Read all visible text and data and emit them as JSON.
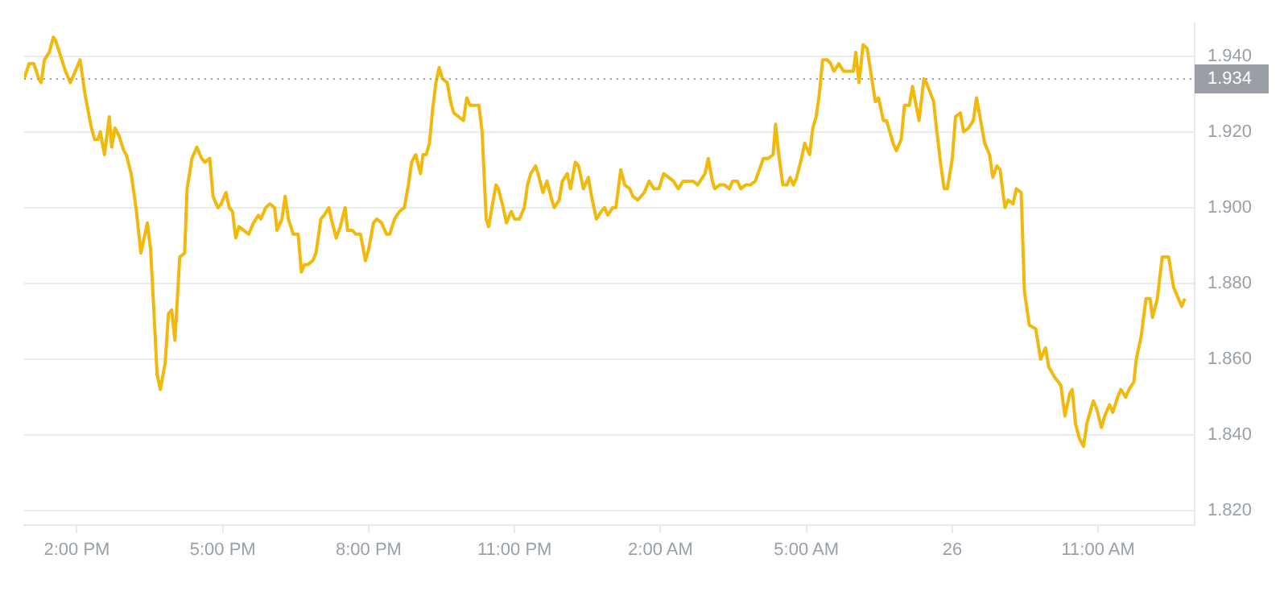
{
  "chart_data": {
    "type": "line",
    "x": [
      "--06-25T12:55",
      "--06-25T13:01",
      "--06-25T13:07",
      "--06-25T13:13",
      "--06-25T13:16",
      "--06-25T13:20",
      "--06-25T13:26",
      "--06-25T13:31",
      "--06-25T13:34",
      "--06-25T13:40",
      "--06-25T13:46",
      "--06-25T13:52",
      "--06-25T13:56",
      "--06-25T14:04",
      "--06-25T14:10",
      "--06-25T14:18",
      "--06-25T14:22",
      "--06-25T14:26",
      "--06-25T14:29",
      "--06-25T14:34",
      "--06-25T14:40",
      "--06-25T14:43",
      "--06-25T14:47",
      "--06-25T14:52",
      "--06-25T14:58",
      "--06-25T15:01",
      "--06-25T15:07",
      "--06-25T15:13",
      "--06-25T15:19",
      "--06-25T15:27",
      "--06-25T15:31",
      "--06-25T15:35",
      "--06-25T15:39",
      "--06-25T15:43",
      "--06-25T15:49",
      "--06-25T15:53",
      "--06-25T15:57",
      "--06-25T16:01",
      "--06-25T16:07",
      "--06-25T16:13",
      "--06-25T16:16",
      "--06-25T16:22",
      "--06-25T16:28",
      "--06-25T16:34",
      "--06-25T16:38",
      "--06-25T16:44",
      "--06-25T16:48",
      "--06-25T16:54",
      "--06-25T16:58",
      "--06-25T17:04",
      "--06-25T17:08",
      "--06-25T17:12",
      "--06-25T17:16",
      "--06-25T17:20",
      "--06-25T17:26",
      "--06-25T17:32",
      "--06-25T17:38",
      "--06-25T17:44",
      "--06-25T17:47",
      "--06-25T17:53",
      "--06-25T17:58",
      "--06-25T18:04",
      "--06-25T18:07",
      "--06-25T18:13",
      "--06-25T18:17",
      "--06-25T18:21",
      "--06-25T18:27",
      "--06-25T18:33",
      "--06-25T18:37",
      "--06-25T18:41",
      "--06-25T18:45",
      "--06-25T18:51",
      "--06-25T18:55",
      "--06-25T19:01",
      "--06-25T19:05",
      "--06-25T19:11",
      "--06-25T19:14",
      "--06-25T19:20",
      "--06-25T19:25",
      "--06-25T19:31",
      "--06-25T19:34",
      "--06-25T19:40",
      "--06-25T19:44",
      "--06-25T19:50",
      "--06-25T19:56",
      "--06-25T20:00",
      "--06-25T20:06",
      "--06-25T20:10",
      "--06-25T20:16",
      "--06-25T20:22",
      "--06-25T20:26",
      "--06-25T20:32",
      "--06-25T20:38",
      "--06-25T20:44",
      "--06-25T20:49",
      "--06-25T20:53",
      "--06-25T20:58",
      "--06-25T21:04",
      "--06-25T21:07",
      "--06-25T21:11",
      "--06-25T21:15",
      "--06-25T21:19",
      "--06-25T21:23",
      "--06-25T21:27",
      "--06-25T21:31",
      "--06-25T21:37",
      "--06-25T21:41",
      "--06-25T21:45",
      "--06-25T21:51",
      "--06-25T21:57",
      "--06-25T22:01",
      "--06-25T22:05",
      "--06-25T22:11",
      "--06-25T22:16",
      "--06-25T22:20",
      "--06-25T22:25",
      "--06-25T22:28",
      "--06-25T22:37",
      "--06-25T22:40",
      "--06-25T22:46",
      "--06-25T22:50",
      "--06-25T22:56",
      "--06-25T23:00",
      "--06-25T23:06",
      "--06-25T23:12",
      "--06-25T23:16",
      "--06-25T23:20",
      "--06-25T23:26",
      "--06-25T23:29",
      "--06-25T23:35",
      "--06-25T23:40",
      "--06-25T23:46",
      "--06-25T23:49",
      "--06-25T23:55",
      "--06-25T23:59",
      "--06-26T00:05",
      "--06-26T00:09",
      "--06-26T00:15",
      "--06-26T00:19",
      "--06-26T00:25",
      "--06-26T00:31",
      "--06-26T00:35",
      "--06-26T00:41",
      "--06-26T00:47",
      "--06-26T00:51",
      "--06-26T00:55",
      "--06-26T01:01",
      "--06-26T01:05",
      "--06-26T01:11",
      "--06-26T01:16",
      "--06-26T01:22",
      "--06-26T01:26",
      "--06-26T01:32",
      "--06-26T01:40",
      "--06-26T01:46",
      "--06-26T01:52",
      "--06-26T01:58",
      "--06-26T02:04",
      "--06-26T02:10",
      "--06-26T02:16",
      "--06-26T02:22",
      "--06-26T02:28",
      "--06-26T02:34",
      "--06-26T02:40",
      "--06-26T02:46",
      "--06-26T02:52",
      "--06-26T02:55",
      "--06-26T02:59",
      "--06-26T03:04",
      "--06-26T03:07",
      "--06-26T03:13",
      "--06-26T03:19",
      "--06-26T03:25",
      "--06-26T03:29",
      "--06-26T03:35",
      "--06-26T03:39",
      "--06-26T03:45",
      "--06-26T03:51",
      "--06-26T03:57",
      "--06-26T04:02",
      "--06-26T04:07",
      "--06-26T04:13",
      "--06-26T04:19",
      "--06-26T04:22",
      "--06-26T04:26",
      "--06-26T04:31",
      "--06-26T04:36",
      "--06-26T04:40",
      "--06-26T04:44",
      "--06-26T04:48",
      "--06-26T04:54",
      "--06-26T04:58",
      "--06-26T05:04",
      "--06-26T05:08",
      "--06-26T05:12",
      "--06-26T05:16",
      "--06-26T05:20",
      "--06-26T05:26",
      "--06-26T05:30",
      "--06-26T05:34",
      "--06-26T05:40",
      "--06-26T05:46",
      "--06-26T05:58",
      "--06-26T06:01",
      "--06-26T06:05",
      "--06-26T06:10",
      "--06-26T06:15",
      "--06-26T06:25",
      "--06-26T06:29",
      "--06-26T06:35",
      "--06-26T06:39",
      "--06-26T06:47",
      "--06-26T06:51",
      "--06-26T06:57",
      "--06-26T07:01",
      "--06-26T07:07",
      "--06-26T07:11",
      "--06-26T07:19",
      "--06-26T07:25",
      "--06-26T07:28",
      "--06-26T07:37",
      "--06-26T07:40",
      "--06-26T07:46",
      "--06-26T07:50",
      "--06-26T07:54",
      "--06-26T08:00",
      "--06-26T08:04",
      "--06-26T08:10",
      "--06-26T08:14",
      "--06-26T08:20",
      "--06-26T08:26",
      "--06-26T08:30",
      "--06-26T08:35",
      "--06-26T08:40",
      "--06-26T08:46",
      "--06-26T08:50",
      "--06-26T08:55",
      "--06-26T08:59",
      "--06-26T09:05",
      "--06-26T09:09",
      "--06-26T09:15",
      "--06-26T09:19",
      "--06-26T09:25",
      "--06-26T09:29",
      "--06-26T09:35",
      "--06-26T09:43",
      "--06-26T09:49",
      "--06-26T09:55",
      "--06-26T09:59",
      "--06-26T10:07",
      "--06-26T10:11",
      "--06-26T10:14",
      "--06-26T10:19",
      "--06-26T10:25",
      "--06-26T10:28",
      "--06-26T10:32",
      "--06-26T10:37",
      "--06-26T10:42",
      "--06-26T10:46",
      "--06-26T10:54",
      "--06-26T10:58",
      "--06-26T11:04",
      "--06-26T11:08",
      "--06-26T11:14",
      "--06-26T11:18",
      "--06-26T11:24",
      "--06-26T11:28",
      "--06-26T11:34",
      "--06-26T11:38",
      "--06-26T11:44",
      "--06-26T11:47",
      "--06-26T11:53",
      "--06-26T11:59",
      "--06-26T12:04",
      "--06-26T12:07",
      "--06-26T12:13",
      "--06-26T12:19",
      "--06-26T12:23",
      "--06-26T12:27",
      "--06-26T12:33",
      "--06-26T12:39",
      "--06-26T12:43",
      "--06-26T12:47"
    ],
    "values": [
      1.934,
      1.938,
      1.938,
      1.934,
      1.933,
      1.939,
      1.941,
      1.945,
      1.944,
      1.94,
      1.936,
      1.933,
      1.935,
      1.939,
      1.93,
      1.921,
      1.918,
      1.918,
      1.92,
      1.914,
      1.924,
      1.916,
      1.921,
      1.919,
      1.915,
      1.914,
      1.909,
      1.9,
      1.888,
      1.896,
      1.889,
      1.873,
      1.856,
      1.852,
      1.859,
      1.872,
      1.873,
      1.865,
      1.887,
      1.888,
      1.905,
      1.913,
      1.916,
      1.913,
      1.912,
      1.913,
      1.903,
      1.9,
      1.901,
      1.904,
      1.9,
      1.899,
      1.892,
      1.895,
      1.894,
      1.893,
      1.896,
      1.898,
      1.897,
      1.9,
      1.901,
      1.9,
      1.894,
      1.897,
      1.903,
      1.897,
      1.893,
      1.893,
      1.883,
      1.885,
      1.885,
      1.886,
      1.888,
      1.897,
      1.898,
      1.9,
      1.897,
      1.892,
      1.895,
      1.9,
      1.894,
      1.894,
      1.893,
      1.893,
      1.886,
      1.889,
      1.896,
      1.897,
      1.896,
      1.893,
      1.893,
      1.897,
      1.899,
      1.9,
      1.906,
      1.912,
      1.914,
      1.909,
      1.914,
      1.914,
      1.917,
      1.926,
      1.933,
      1.937,
      1.934,
      1.933,
      1.928,
      1.925,
      1.924,
      1.923,
      1.929,
      1.927,
      1.927,
      1.927,
      1.92,
      1.897,
      1.895,
      1.906,
      1.905,
      1.9,
      1.896,
      1.899,
      1.897,
      1.897,
      1.9,
      1.906,
      1.909,
      1.911,
      1.909,
      1.904,
      1.907,
      1.902,
      1.9,
      1.902,
      1.907,
      1.909,
      1.905,
      1.912,
      1.911,
      1.905,
      1.908,
      1.903,
      1.897,
      1.899,
      1.9,
      1.898,
      1.9,
      1.9,
      1.91,
      1.906,
      1.905,
      1.903,
      1.902,
      1.904,
      1.907,
      1.905,
      1.905,
      1.909,
      1.908,
      1.907,
      1.905,
      1.907,
      1.907,
      1.907,
      1.906,
      1.908,
      1.909,
      1.913,
      1.907,
      1.905,
      1.906,
      1.906,
      1.905,
      1.907,
      1.907,
      1.905,
      1.906,
      1.906,
      1.907,
      1.91,
      1.913,
      1.913,
      1.914,
      1.922,
      1.914,
      1.906,
      1.906,
      1.908,
      1.906,
      1.908,
      1.913,
      1.917,
      1.914,
      1.921,
      1.924,
      1.93,
      1.939,
      1.939,
      1.938,
      1.936,
      1.938,
      1.936,
      1.936,
      1.941,
      1.933,
      1.943,
      1.942,
      1.928,
      1.929,
      1.923,
      1.923,
      1.917,
      1.915,
      1.918,
      1.927,
      1.927,
      1.932,
      1.923,
      1.934,
      1.933,
      1.928,
      1.922,
      1.911,
      1.905,
      1.905,
      1.913,
      1.924,
      1.925,
      1.92,
      1.921,
      1.923,
      1.929,
      1.923,
      1.917,
      1.914,
      1.908,
      1.911,
      1.91,
      1.9,
      1.902,
      1.901,
      1.905,
      1.904,
      1.878,
      1.869,
      1.868,
      1.86,
      1.863,
      1.858,
      1.855,
      1.854,
      1.853,
      1.845,
      1.851,
      1.852,
      1.843,
      1.839,
      1.837,
      1.843,
      1.849,
      1.847,
      1.842,
      1.845,
      1.848,
      1.846,
      1.85,
      1.852,
      1.85,
      1.852,
      1.854,
      1.86,
      1.866,
      1.876,
      1.876,
      1.871,
      1.876,
      1.887,
      1.887,
      1.887,
      1.879,
      1.876,
      1.874,
      1.876
    ],
    "color": "#f0b90b",
    "xlim": [
      "--06-25T12:55",
      "--06-26T12:59"
    ],
    "xticks": [
      {
        "value": "--06-25T14:00",
        "label": "2:00 PM"
      },
      {
        "value": "--06-25T17:00",
        "label": "5:00 PM"
      },
      {
        "value": "--06-25T20:00",
        "label": "8:00 PM"
      },
      {
        "value": "--06-25T23:00",
        "label": "11:00 PM"
      },
      {
        "value": "--06-26T02:00",
        "label": "2:00 AM"
      },
      {
        "value": "--06-26T05:00",
        "label": "5:00 AM"
      },
      {
        "value": "--06-26T08:00",
        "label": "26"
      },
      {
        "value": "--06-26T11:00",
        "label": "11:00 AM"
      }
    ],
    "ylim": [
      1.8163,
      1.9486
    ],
    "yticks": [
      {
        "value": 1.82,
        "label": "1.820"
      },
      {
        "value": 1.84,
        "label": "1.840"
      },
      {
        "value": 1.86,
        "label": "1.860"
      },
      {
        "value": 1.88,
        "label": "1.880"
      },
      {
        "value": 1.9,
        "label": "1.900"
      },
      {
        "value": 1.92,
        "label": "1.920"
      },
      {
        "value": 1.94,
        "label": "1.940"
      }
    ],
    "ref_lines": [
      {
        "axis": "y",
        "value": 1.934,
        "label": "1.934",
        "color": "#9a9ea6",
        "line_style": "dotted"
      }
    ],
    "grid": "y",
    "legend": false
  }
}
